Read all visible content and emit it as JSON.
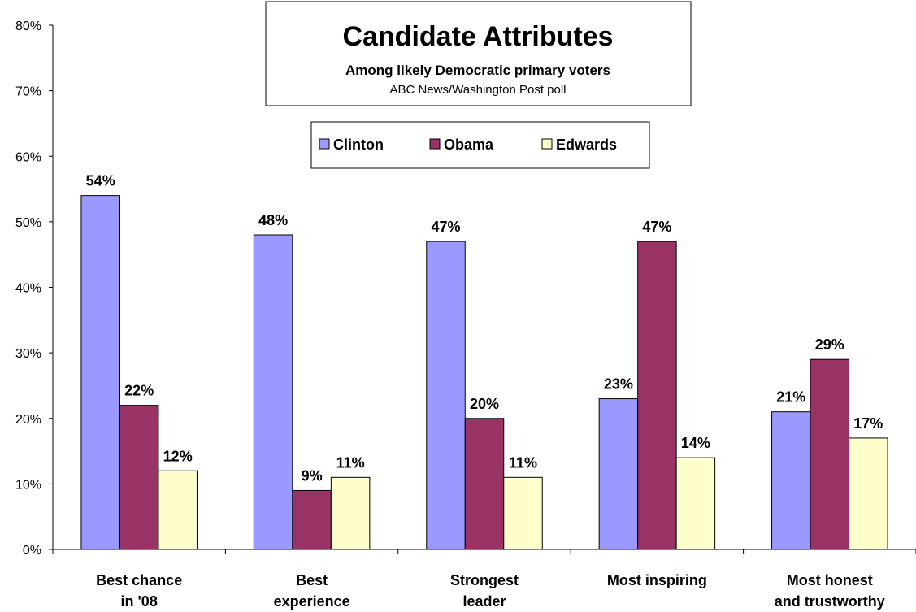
{
  "chart_data": {
    "type": "bar",
    "title": "Candidate Attributes",
    "subtitle": "Among likely Democratic primary voters",
    "source": "ABC News/Washington Post poll",
    "categories": [
      [
        "Best chance",
        "in '08"
      ],
      [
        "Best",
        "experience"
      ],
      [
        "Strongest",
        "leader"
      ],
      [
        "Most inspiring"
      ],
      [
        "Most honest",
        "and trustworthy"
      ]
    ],
    "series": [
      {
        "name": "Clinton",
        "color": "#9999ff",
        "values": [
          54,
          48,
          47,
          23,
          21
        ]
      },
      {
        "name": "Obama",
        "color": "#993366",
        "values": [
          22,
          9,
          20,
          47,
          29
        ]
      },
      {
        "name": "Edwards",
        "color": "#ffffcc",
        "values": [
          12,
          11,
          11,
          14,
          17
        ]
      }
    ],
    "value_suffix": "%",
    "ylim": [
      0,
      80
    ],
    "yticks": [
      "0%",
      "10%",
      "20%",
      "30%",
      "40%",
      "50%",
      "60%",
      "70%",
      "80%"
    ],
    "xlabel": "",
    "ylabel": "",
    "legend_position": "top-center",
    "grid": false
  }
}
